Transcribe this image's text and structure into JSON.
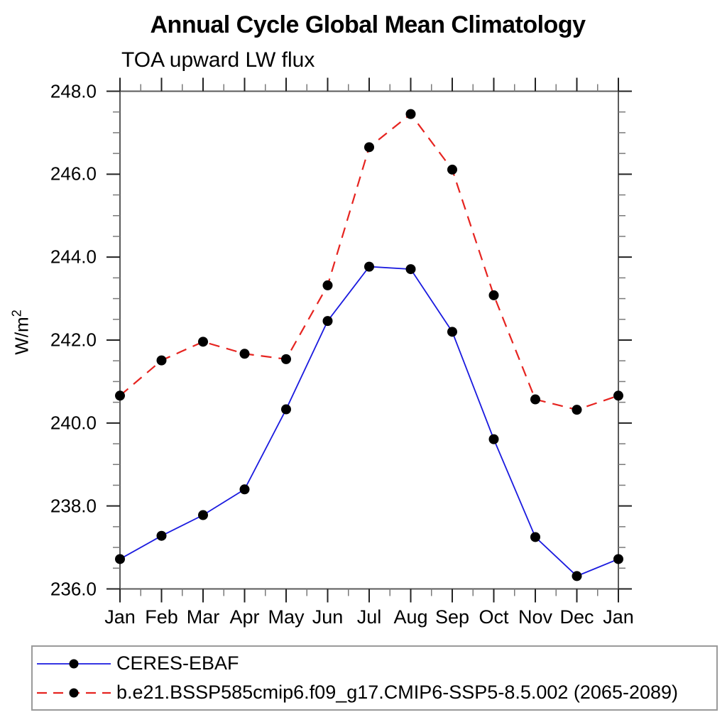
{
  "title": "Annual Cycle Global Mean Climatology",
  "subtitle": "TOA upward LW flux",
  "y_axis_label": {
    "base": "W/m",
    "sup": "2"
  },
  "chart_data": {
    "type": "line",
    "title": "Annual Cycle Global Mean Climatology",
    "subtitle": "TOA upward LW flux",
    "ylabel": "W/m²",
    "xlabel": "",
    "x_categories": [
      "Jan",
      "Feb",
      "Mar",
      "Apr",
      "May",
      "Jun",
      "Jul",
      "Aug",
      "Sep",
      "Oct",
      "Nov",
      "Dec",
      "Jan"
    ],
    "ylim": [
      236.0,
      248.0
    ],
    "ytick_major_interval": 2.0,
    "ytick_minor_interval": 0.5,
    "ytick_labels": [
      "236.0",
      "238.0",
      "240.0",
      "242.0",
      "244.0",
      "246.0",
      "248.0"
    ],
    "grid": false,
    "legend_position": "bottom-left",
    "series": [
      {
        "name": "CERES-EBAF",
        "color": "#1a1adf",
        "line_style": "solid",
        "marker": "filled-circle",
        "marker_color": "#000000",
        "values": [
          236.72,
          237.28,
          237.78,
          238.4,
          240.33,
          242.46,
          243.77,
          243.71,
          242.2,
          239.61,
          237.25,
          236.31,
          236.72
        ]
      },
      {
        "name": "b.e21.BSSP585cmip6.f09_g17.CMIP6-SSP5-8.5.002 (2065-2089)",
        "color": "#e62420",
        "line_style": "dashed",
        "marker": "filled-circle",
        "marker_color": "#000000",
        "values": [
          240.66,
          241.51,
          241.96,
          241.67,
          241.54,
          243.32,
          246.65,
          247.45,
          246.11,
          243.08,
          240.57,
          240.32,
          240.66
        ]
      }
    ]
  },
  "style_colors": {
    "frame": "#5a5a5a",
    "tick_major": "#222222",
    "tick_minor": "#7a7a7a"
  }
}
